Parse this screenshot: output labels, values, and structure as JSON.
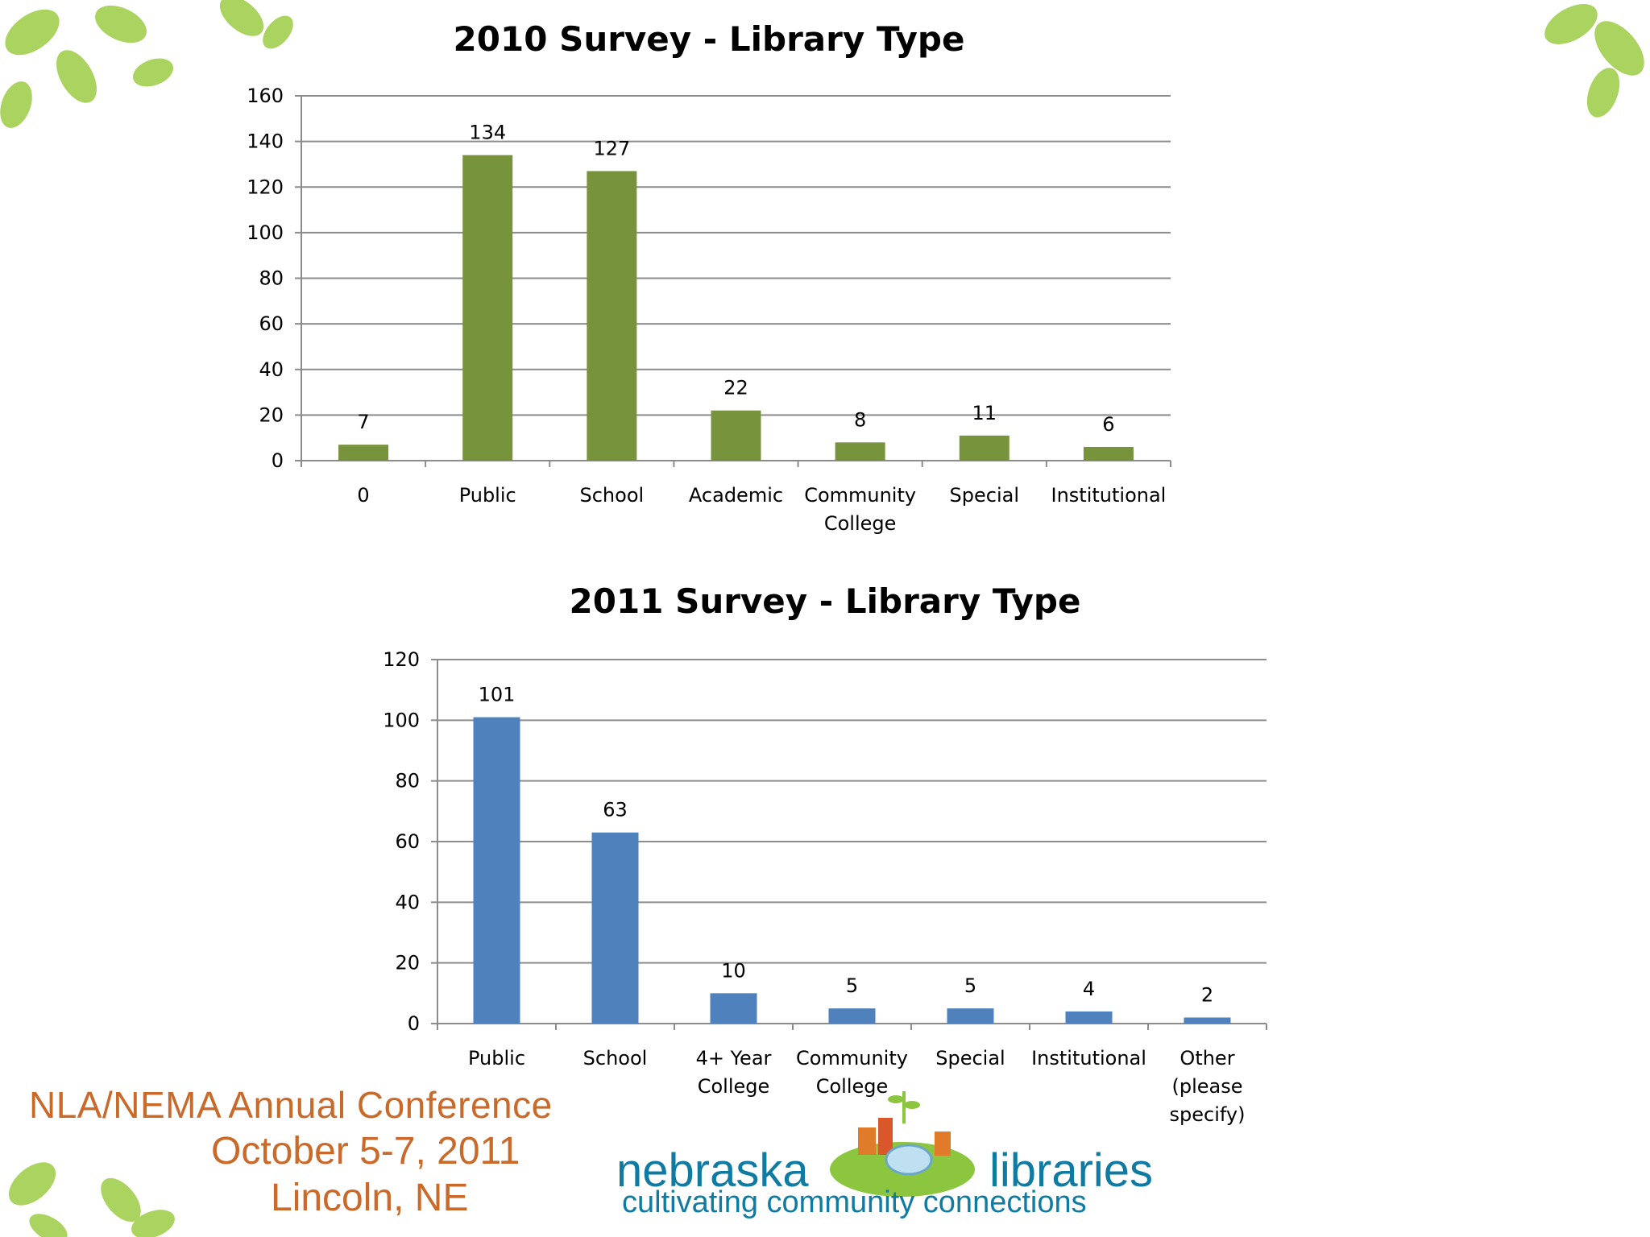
{
  "chart_data": [
    {
      "type": "bar",
      "title": "2010 Survey - Library Type",
      "categories": [
        "0",
        "Public",
        "School",
        "Academic",
        "Community College",
        "Special",
        "Institutional"
      ],
      "values": [
        7,
        134,
        127,
        22,
        8,
        11,
        6
      ],
      "ylim": [
        0,
        160
      ],
      "yticks": [
        0,
        20,
        40,
        60,
        80,
        100,
        120,
        140,
        160
      ],
      "grid": true,
      "color": "#77933c"
    },
    {
      "type": "bar",
      "title": "2011 Survey - Library Type",
      "categories": [
        "Public",
        "School",
        "4+ Year College",
        "Community College",
        "Special",
        "Institutional",
        "Other (please specify)"
      ],
      "values": [
        101,
        63,
        10,
        5,
        5,
        4,
        2
      ],
      "ylim": [
        0,
        120
      ],
      "yticks": [
        0,
        20,
        40,
        60,
        80,
        100,
        120
      ],
      "grid": true,
      "color": "#4f81bd"
    }
  ],
  "footer": {
    "conference_name": "NLA/NEMA Annual Conference",
    "conference_dates": "October 5-7, 2011",
    "conference_location": "Lincoln, NE",
    "logo_word_left": "nebraska",
    "logo_word_right": "libraries",
    "logo_tagline": "cultivating community connections"
  },
  "colors": {
    "leaf_green": "#8cc63f",
    "conference_orange": "#c96a2a",
    "logo_blue": "#0f7ba3"
  }
}
